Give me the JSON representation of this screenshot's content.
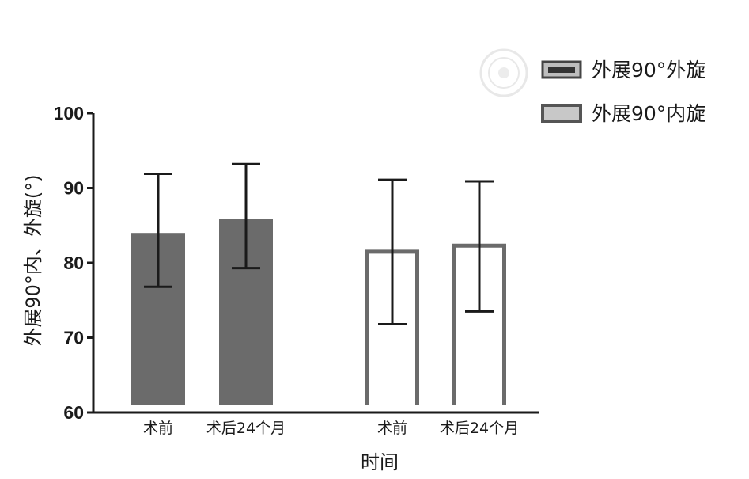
{
  "chart_data": {
    "type": "bar",
    "title": "",
    "xlabel": "时间",
    "ylabel": "外展90°内、外旋(°)",
    "ylim": [
      60,
      100
    ],
    "yticks": [
      60,
      70,
      80,
      90,
      100
    ],
    "grid": false,
    "legend_position": "top-right",
    "groups": [
      {
        "series": "外展90°外旋",
        "style": "filled",
        "color": "#6b6b6b",
        "categories": [
          "术前",
          "术后24个月"
        ],
        "values": [
          84.0,
          85.9
        ],
        "error_low": [
          76.8,
          79.3
        ],
        "error_high": [
          91.9,
          93.2
        ]
      },
      {
        "series": "外展90°内旋",
        "style": "outline",
        "color": "#6b6b6b",
        "categories": [
          "术前",
          "术后24个月"
        ],
        "values": [
          81.5,
          82.3
        ],
        "error_low": [
          71.8,
          73.5
        ],
        "error_high": [
          91.1,
          90.9
        ]
      }
    ]
  },
  "legend": [
    {
      "label": "外展90°外旋",
      "style": "filled"
    },
    {
      "label": "外展90°内旋",
      "style": "outline"
    }
  ],
  "colors": {
    "bar": "#6b6b6b",
    "outline": "#6b6b6b",
    "axis": "#1a1a1a",
    "errorbar": "#1a1a1a"
  }
}
